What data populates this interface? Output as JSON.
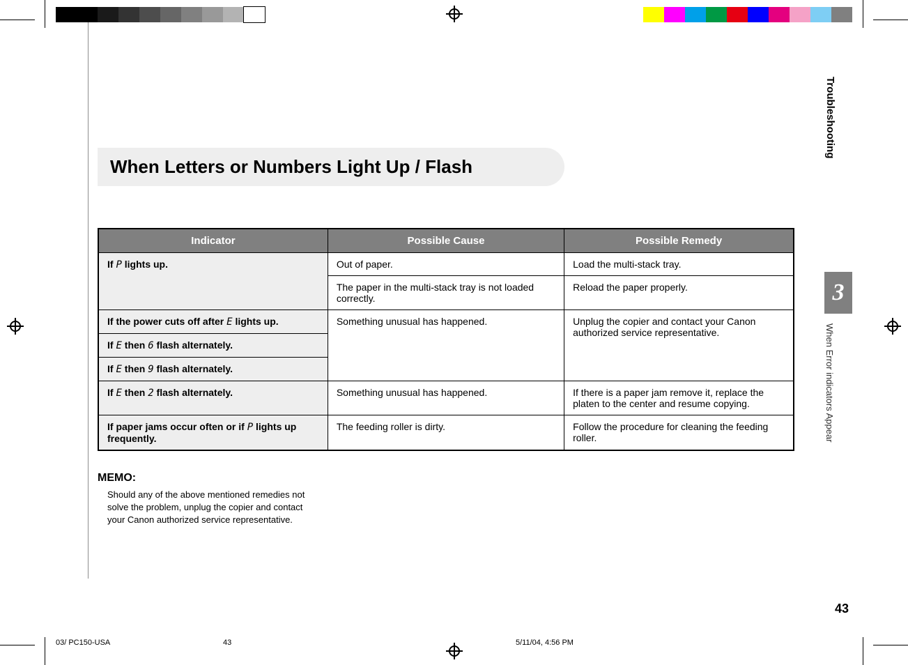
{
  "colorbars": {
    "left": [
      "#000000",
      "#000000",
      "#1a1a1a",
      "#333333",
      "#4d4d4d",
      "#666666",
      "#808080",
      "#999999",
      "#b3b3b3",
      "#ffffff"
    ],
    "right": [
      "#ffff00",
      "#ff00ff",
      "#00a0e9",
      "#009944",
      "#e60012",
      "#0000ff",
      "#e4007f",
      "#f5a2c7",
      "#7ecef4",
      "#808080"
    ]
  },
  "side": {
    "section": "Troubleshooting",
    "chapter_number": "3",
    "subsection": "When Error indicators Appear",
    "page_number": "43"
  },
  "title": "When Letters or Numbers Light Up / Flash",
  "table": {
    "headers": [
      "Indicator",
      "Possible Cause",
      "Possible Remedy"
    ],
    "rows": [
      {
        "indicator_pre": "If ",
        "indicator_code": "P",
        "indicator_post": " lights up.",
        "cause": "Out of paper.",
        "remedy": "Load the multi-stack tray.",
        "ind_rowspan": 2
      },
      {
        "cause": "The paper in the multi-stack tray is not loaded correctly.",
        "remedy": "Reload the paper properly."
      },
      {
        "indicator_pre": "If the power cuts off after ",
        "indicator_code": "E",
        "indicator_post": " lights up.",
        "cause": "Something unusual has happened.",
        "remedy": "Unplug the copier and contact your Canon authorized service representative.",
        "cause_rowspan": 3,
        "remedy_rowspan": 3
      },
      {
        "indicator_pre": "If ",
        "indicator_code": "E",
        "indicator_mid": " then ",
        "indicator_code2": "6",
        "indicator_post": " flash alternately."
      },
      {
        "indicator_pre": "If ",
        "indicator_code": "E",
        "indicator_mid": " then ",
        "indicator_code2": "9",
        "indicator_post": " flash alternately."
      },
      {
        "indicator_pre": "If ",
        "indicator_code": "E",
        "indicator_mid": " then ",
        "indicator_code2": "2",
        "indicator_post": " flash alternately.",
        "cause": "Something unusual has happened.",
        "remedy": "If there is a paper jam remove it, replace the platen to the center and resume copying."
      },
      {
        "indicator_pre": "If paper jams occur often or if ",
        "indicator_code": "P",
        "indicator_post": " lights up frequently.",
        "cause": "The feeding roller is dirty.",
        "remedy": "Follow the procedure for cleaning the feeding roller."
      }
    ]
  },
  "memo": {
    "heading": "MEMO:",
    "body": "Should any of the above mentioned remedies not solve the problem, unplug the copier and contact your Canon authorized service representative."
  },
  "footer": {
    "file": "03/ PC150-USA",
    "page": "43",
    "timestamp": "5/11/04, 4:56 PM"
  }
}
